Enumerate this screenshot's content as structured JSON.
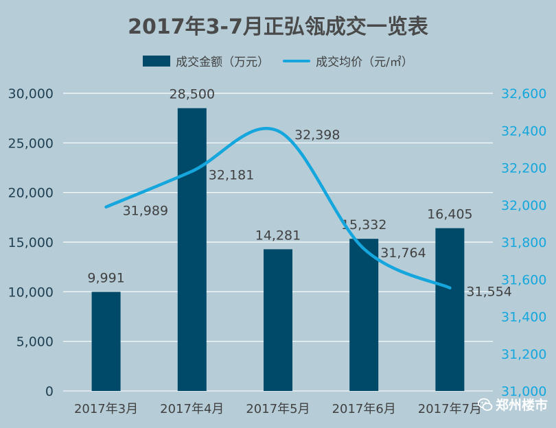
{
  "chart_data": {
    "type": "bar+line",
    "title": "2017年3-7月正弘瓴成交一览表",
    "categories": [
      "2017年3月",
      "2017年4月",
      "2017年5月",
      "2017年6月",
      "2017年7月"
    ],
    "series": [
      {
        "name": "成交金额（万元）",
        "type": "bar",
        "axis": "left",
        "values": [
          9991,
          28500,
          14281,
          15332,
          16405
        ],
        "labels": [
          "9,991",
          "28,500",
          "14,281",
          "15,332",
          "16,405"
        ]
      },
      {
        "name": "成交均价（元/㎡）",
        "type": "line",
        "axis": "right",
        "smooth": true,
        "values": [
          31989,
          32181,
          32398,
          31764,
          31554
        ],
        "labels": [
          "31,989",
          "32,181",
          "32,398",
          "31,764",
          "31,554"
        ]
      }
    ],
    "y_left": {
      "min": 0,
      "max": 30000,
      "ticks": [
        0,
        5000,
        10000,
        15000,
        20000,
        25000,
        30000
      ],
      "tick_labels": [
        "0",
        "5,000",
        "10,000",
        "15,000",
        "20,000",
        "25,000",
        "30,000"
      ]
    },
    "y_right": {
      "min": 31000,
      "max": 32600,
      "ticks": [
        31000,
        31200,
        31400,
        31600,
        31800,
        32000,
        32200,
        32400,
        32600
      ],
      "tick_labels": [
        "31,000",
        "31,200",
        "31,400",
        "31,600",
        "31,800",
        "32,000",
        "32,200",
        "32,400",
        "32,600"
      ]
    },
    "grid": true,
    "legend_position": "top",
    "colors": {
      "bar": "#004a69",
      "line": "#14a6dc",
      "background": "#b6cdd8",
      "grid": "#ffffff",
      "left_axis_text": "#1f3f52",
      "right_axis_text": "#14a6dc"
    }
  },
  "watermark": {
    "text": "郑州楼市",
    "icon": "wechat-icon"
  }
}
